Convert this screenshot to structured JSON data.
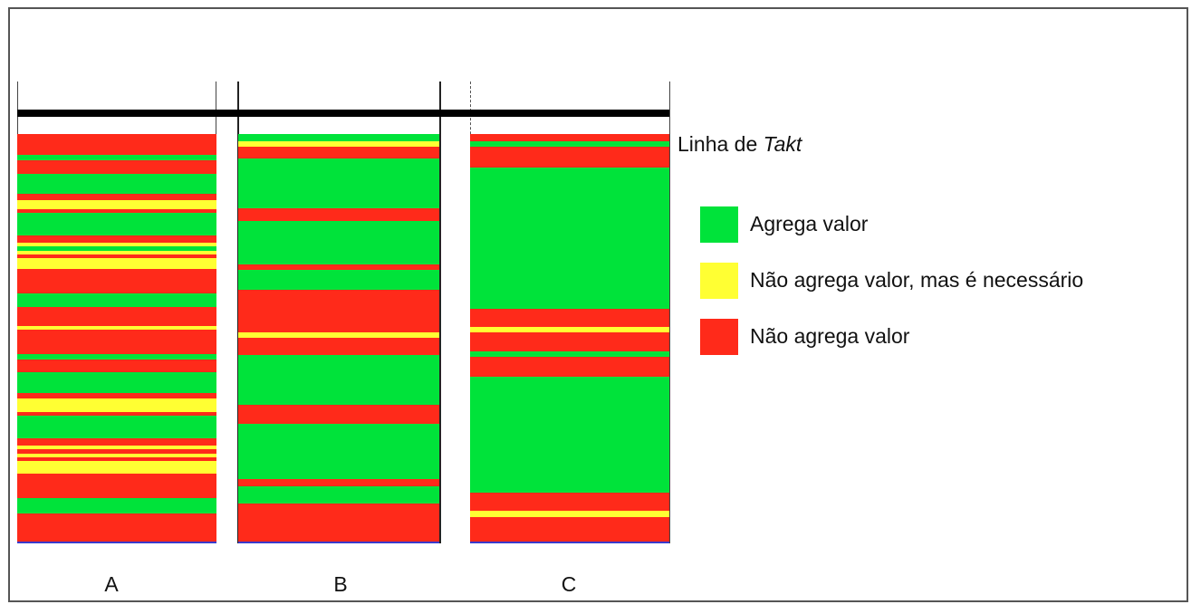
{
  "colors": {
    "green": "#00e33a",
    "yellow": "#ffff33",
    "red": "#ff2a1a"
  },
  "takt": {
    "label_prefix": "Linha de ",
    "label_italic": "Takt"
  },
  "legend": [
    {
      "key": "green",
      "label": "Agrega valor"
    },
    {
      "key": "yellow",
      "label": "Não agrega valor, mas é necessário"
    },
    {
      "key": "red",
      "label": "Não agrega valor"
    }
  ],
  "columns": [
    {
      "label": "A",
      "segments": [
        [
          "red",
          22
        ],
        [
          "green",
          6
        ],
        [
          "red",
          14
        ],
        [
          "green",
          22
        ],
        [
          "red",
          6
        ],
        [
          "yellow",
          10
        ],
        [
          "red",
          4
        ],
        [
          "green",
          24
        ],
        [
          "red",
          8
        ],
        [
          "yellow",
          4
        ],
        [
          "green",
          4
        ],
        [
          "yellow",
          4
        ],
        [
          "red",
          4
        ],
        [
          "yellow",
          12
        ],
        [
          "red",
          26
        ],
        [
          "green",
          14
        ],
        [
          "red",
          20
        ],
        [
          "yellow",
          4
        ],
        [
          "red",
          26
        ],
        [
          "green",
          6
        ],
        [
          "red",
          14
        ],
        [
          "green",
          22
        ],
        [
          "red",
          6
        ],
        [
          "yellow",
          14
        ],
        [
          "red",
          4
        ],
        [
          "green",
          24
        ],
        [
          "red",
          8
        ],
        [
          "yellow",
          4
        ],
        [
          "red",
          4
        ],
        [
          "yellow",
          4
        ],
        [
          "red",
          4
        ],
        [
          "yellow",
          14
        ],
        [
          "red",
          26
        ],
        [
          "green",
          16
        ],
        [
          "red",
          30
        ]
      ]
    },
    {
      "label": "B",
      "segments": [
        [
          "green",
          8
        ],
        [
          "yellow",
          6
        ],
        [
          "red",
          14
        ],
        [
          "green",
          56
        ],
        [
          "red",
          14
        ],
        [
          "green",
          50
        ],
        [
          "red",
          6
        ],
        [
          "green",
          22
        ],
        [
          "red",
          48
        ],
        [
          "yellow",
          6
        ],
        [
          "red",
          20
        ],
        [
          "green",
          56
        ],
        [
          "red",
          22
        ],
        [
          "green",
          62
        ],
        [
          "red",
          8
        ],
        [
          "green",
          20
        ],
        [
          "red",
          43
        ]
      ]
    },
    {
      "label": "C",
      "segments": [
        [
          "red",
          8
        ],
        [
          "green",
          6
        ],
        [
          "red",
          22
        ],
        [
          "green",
          154
        ],
        [
          "red",
          20
        ],
        [
          "yellow",
          6
        ],
        [
          "red",
          20
        ],
        [
          "green",
          6
        ],
        [
          "red",
          22
        ],
        [
          "green",
          126
        ],
        [
          "red",
          20
        ],
        [
          "yellow",
          6
        ],
        [
          "red",
          27
        ]
      ]
    }
  ]
}
